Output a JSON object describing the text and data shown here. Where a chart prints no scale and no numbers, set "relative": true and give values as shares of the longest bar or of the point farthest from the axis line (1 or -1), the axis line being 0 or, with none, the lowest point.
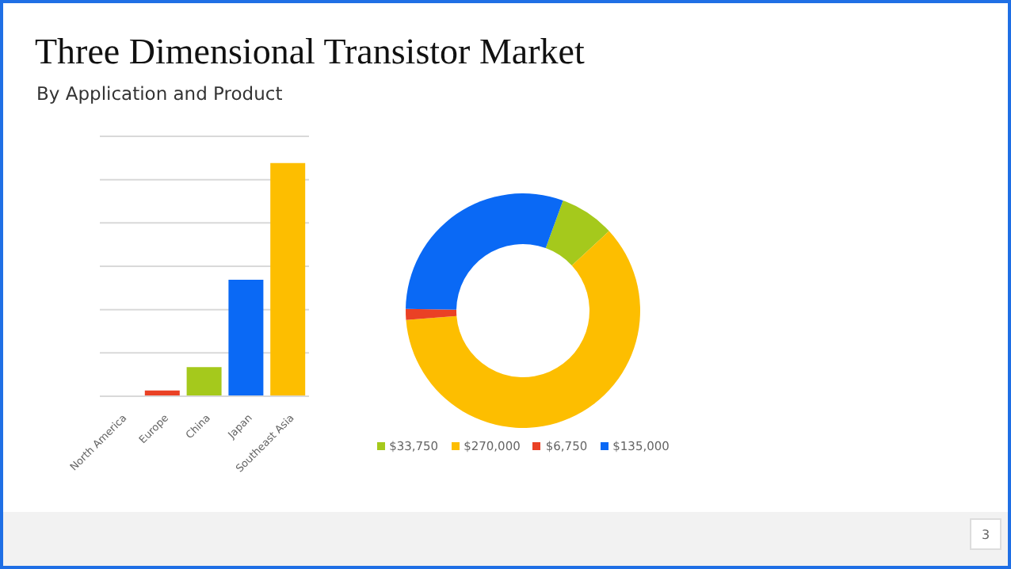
{
  "chart_data": [
    {
      "type": "bar",
      "title": "Three Dimensional Transistor Market",
      "subtitle": "By Application and Product",
      "relative": true,
      "categories": [
        "North America",
        "Europe",
        "China",
        "Japan",
        "Southeast Asia"
      ],
      "values": [
        0,
        0.025,
        0.125,
        0.5,
        1
      ],
      "colors": [
        "#a5c91c",
        "#ea4125",
        "#a5c91c",
        "#0a69f5",
        "#fdbe00"
      ],
      "grid": "y"
    },
    {
      "type": "donut",
      "categories": [
        "$33,750",
        "$270,000",
        "$6,750",
        "$135,000"
      ],
      "values": [
        33750,
        270000,
        6750,
        135000
      ],
      "colors": [
        "#a5c91c",
        "#fdbe00",
        "#ea4125",
        "#0a69f5"
      ],
      "legend": "bottom",
      "annotations": [
        "3"
      ]
    }
  ]
}
